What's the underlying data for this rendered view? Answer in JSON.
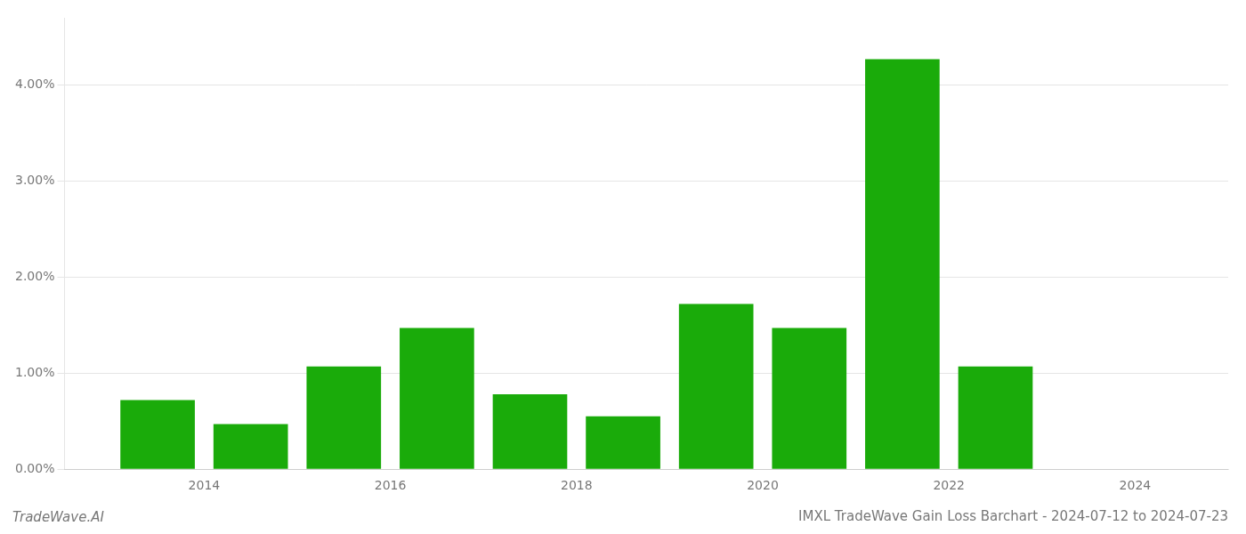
{
  "chart_data": {
    "type": "bar",
    "title": "IMXL TradeWave Gain Loss Barchart - 2024-07-12 to 2024-07-23",
    "annotations": [
      "TradeWave.AI"
    ],
    "x": [
      2013.5,
      2014.5,
      2015.5,
      2016.5,
      2017.5,
      2018.5,
      2019.5,
      2020.5,
      2021.5,
      2022.5
    ],
    "values": [
      0.0072,
      0.0047,
      0.0107,
      0.0147,
      0.0078,
      0.0055,
      0.0172,
      0.0147,
      0.0427,
      0.0107
    ],
    "color": "#1aab0a",
    "xlim": [
      2012.5,
      2025.0
    ],
    "xticks": [
      2014,
      2016,
      2018,
      2020,
      2022,
      2024
    ],
    "ylim": [
      0.0,
      0.047
    ],
    "yticks": [
      {
        "value": 0.0,
        "label": "0.00%"
      },
      {
        "value": 0.01,
        "label": "1.00%"
      },
      {
        "value": 0.02,
        "label": "2.00%"
      },
      {
        "value": 0.03,
        "label": "3.00%"
      },
      {
        "value": 0.04,
        "label": "4.00%"
      }
    ],
    "grid": true
  }
}
